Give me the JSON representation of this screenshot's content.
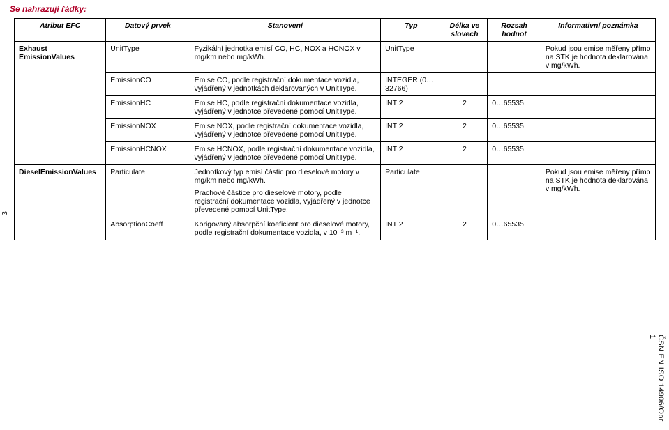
{
  "heading": "Se nahrazují řádky:",
  "page_number": "3",
  "side_label": "ČSN EN ISO 14906/Opr. 1",
  "columns": {
    "c1": "Atribut EFC",
    "c2": "Datový prvek",
    "c3": "Stanovení",
    "c4": "Typ",
    "c5": "Délka ve slovech",
    "c6": "Rozsah hodnot",
    "c7": "Informativní poznámka"
  },
  "rows": [
    {
      "atribut": "Exhaust EmissionValues",
      "prvek": "UnitType",
      "stanoveni": [
        "Fyzikální jednotka emisí CO, HC, NOX a HCNOX v mg/km nebo mg/kWh."
      ],
      "typ": "UnitType",
      "delka": "",
      "rozsah": "",
      "pozn": "Pokud jsou emise měřeny přímo na STK je hodnota deklarována v mg/kWh.",
      "atribut_rowspan": 5
    },
    {
      "prvek": "EmissionCO",
      "stanoveni": [
        "Emise CO, podle registrační dokumentace vozidla, vyjádřený v jednotkách deklarovaných v UnitType."
      ],
      "typ": "INTEGER (0…32766)",
      "delka": "",
      "rozsah": "",
      "pozn": ""
    },
    {
      "prvek": "EmissionHC",
      "stanoveni": [
        "Emise HC, podle registrační dokumentace vozidla, vyjádřený v jednotce převedené pomocí UnitType."
      ],
      "typ": "INT 2",
      "delka": "2",
      "rozsah": "0…65535",
      "pozn": ""
    },
    {
      "prvek": "EmissionNOX",
      "stanoveni": [
        "Emise NOX, podle registrační dokumentace vozidla, vyjádřený v jednotce převedené pomocí UnitType."
      ],
      "typ": "INT 2",
      "delka": "2",
      "rozsah": "0…65535",
      "pozn": ""
    },
    {
      "prvek": "EmissionHCNOX",
      "stanoveni": [
        "Emise HCNOX, podle registrační dokumentace vozidla, vyjádřený v jednotce převedené pomocí UnitType."
      ],
      "typ": "INT 2",
      "delka": "2",
      "rozsah": "0…65535",
      "pozn": ""
    },
    {
      "atribut": "DieselEmissionValues",
      "prvek": "Particulate",
      "stanoveni": [
        "Jednotkový typ emisí částic pro dieselové motory v mg/km nebo mg/kWh.",
        "Prachové částice pro dieselové motory, podle registrační dokumentace vozidla, vyjádřený v jednotce převedené pomocí UnitType."
      ],
      "typ": "Particulate",
      "delka": "",
      "rozsah": "",
      "pozn": "Pokud jsou emise měřeny přímo na STK je hodnota deklarována v mg/kWh.",
      "atribut_rowspan": 2
    },
    {
      "prvek": "AbsorptionCoeff",
      "stanoveni": [
        "Korigovaný absorpční koeficient pro dieselové motory, podle registrační dokumentace vozidla, v 10⁻³ m⁻¹."
      ],
      "typ": "INT 2",
      "delka": "2",
      "rozsah": "0…65535",
      "pozn": ""
    }
  ]
}
